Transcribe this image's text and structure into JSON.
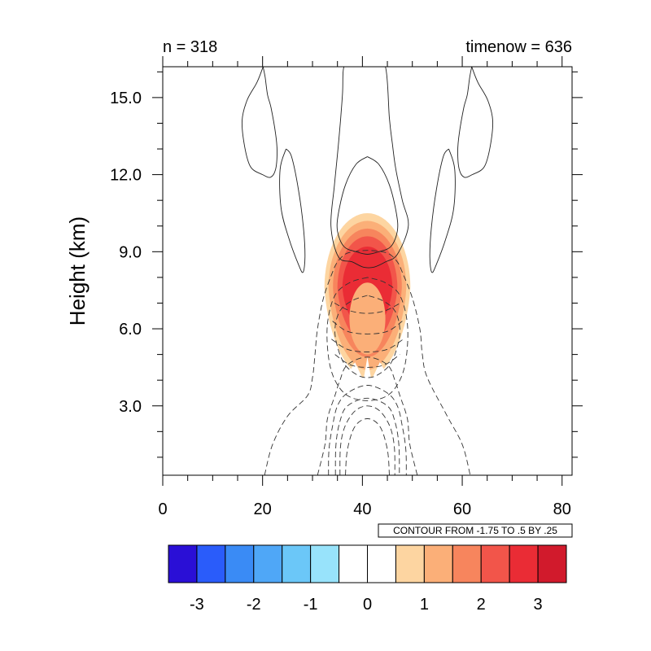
{
  "chart_data": {
    "type": "contour",
    "title_left": "n = 318",
    "title_right": "timenow = 636",
    "xlabel": "",
    "ylabel": "Height (km)",
    "xlim": [
      0,
      82
    ],
    "ylim": [
      0.3,
      16.2
    ],
    "x_ticks": [
      0,
      20,
      40,
      60,
      80
    ],
    "x_tick_labels": [
      "0",
      "20",
      "40",
      "60",
      "80"
    ],
    "y_ticks": [
      3,
      6,
      9,
      12,
      15
    ],
    "y_tick_labels": [
      "3.0",
      "6.0",
      "9.0",
      "12.0",
      "15.0"
    ],
    "contour_info": "CONTOUR FROM -1.75 TO .5 BY .25",
    "filled_field": {
      "center": [
        41,
        7.6
      ],
      "levels": [
        {
          "value": 0.5,
          "rx": 8.6,
          "ry_top": 2.9,
          "ry_bot": 3.5
        },
        {
          "value": 1.0,
          "rx": 7.8,
          "ry_top": 2.6,
          "ry_bot": 3.2
        },
        {
          "value": 1.5,
          "rx": 6.9,
          "ry_top": 2.3,
          "ry_bot": 2.7
        },
        {
          "value": 2.0,
          "rx": 6.0,
          "ry_top": 2.0,
          "ry_bot": 2.2
        },
        {
          "value": 2.5,
          "rx": 5.0,
          "ry_top": 1.6,
          "ry_bot": 1.7
        }
      ],
      "inner_pale": {
        "cx": 41,
        "cy": 6.4,
        "rx": 3.6,
        "ry": 1.4
      }
    },
    "contour_lines": {
      "positive": [
        {
          "x": [
            41,
            38.7,
            36.6,
            35.2,
            35.0,
            36.3,
            38.7,
            41,
            43.3,
            45.7,
            47.0,
            46.8,
            45.4,
            43.3,
            41
          ],
          "y": [
            12.7,
            12.4,
            11.6,
            10.5,
            9.8,
            9.2,
            9.0,
            8.9,
            9.0,
            9.2,
            9.8,
            10.5,
            11.6,
            12.4,
            12.7
          ]
        },
        {
          "x": [
            38.2,
            42.2,
            44.6,
            45.4,
            46.0,
            46.7,
            48.0,
            49.2,
            47.0,
            44.6,
            42.3,
            40.2,
            38.0,
            35.2,
            33.7,
            34.4,
            35.3,
            36.0,
            36.3,
            38.2
          ],
          "y": [
            16.2,
            16.2,
            16.2,
            14.2,
            13.2,
            12.2,
            11.0,
            10.0,
            8.9,
            8.6,
            8.4,
            8.4,
            8.6,
            8.8,
            10.0,
            11.6,
            13.4,
            15.1,
            16.2,
            16.2
          ]
        },
        {
          "x": [
            20.1,
            20.5,
            21.0,
            21.7,
            22.6,
            22.9,
            22.6,
            21.6,
            20.0,
            17.6,
            16.4,
            15.9,
            16.9,
            18.9,
            20.1
          ],
          "y": [
            16.2,
            15.8,
            15.1,
            14.6,
            13.6,
            12.9,
            12.2,
            11.9,
            12.0,
            12.3,
            13.1,
            14.1,
            14.9,
            15.6,
            16.2
          ]
        },
        {
          "x": [
            61.9,
            61.5,
            61.0,
            60.3,
            59.4,
            59.1,
            59.4,
            60.4,
            62.0,
            64.4,
            65.6,
            66.1,
            65.1,
            63.1,
            61.9
          ],
          "y": [
            16.2,
            15.8,
            15.1,
            14.6,
            13.6,
            12.9,
            12.2,
            11.9,
            12.0,
            12.3,
            13.1,
            14.1,
            14.9,
            15.6,
            16.2
          ]
        },
        {
          "x": [
            24.7,
            23.5,
            23.7,
            25.3,
            27.2,
            28.1,
            28.5,
            28.2,
            27.2,
            25.8,
            24.7
          ],
          "y": [
            13.0,
            12.2,
            10.7,
            9.5,
            8.5,
            8.2,
            8.8,
            9.9,
            11.4,
            12.7,
            13.0
          ]
        },
        {
          "x": [
            57.3,
            58.5,
            58.3,
            56.7,
            54.8,
            53.9,
            53.5,
            53.8,
            54.8,
            56.2,
            57.3
          ],
          "y": [
            13.0,
            12.2,
            10.7,
            9.5,
            8.5,
            8.2,
            8.8,
            9.9,
            11.4,
            12.7,
            13.0
          ]
        }
      ],
      "negative": [
        {
          "x": [
            41,
            38.0,
            35.5,
            34.5,
            35.0,
            36.5,
            39.0,
            41,
            43.0,
            45.5,
            47.0,
            47.5,
            46.5,
            44.0,
            41
          ],
          "y": [
            7.3,
            7.1,
            6.7,
            6.0,
            5.3,
            4.6,
            4.2,
            4.1,
            4.2,
            4.6,
            5.3,
            6.0,
            6.7,
            7.1,
            7.3
          ]
        },
        {
          "x": [
            41,
            37.5,
            34.5,
            33.0,
            33.2,
            34.5,
            37.0,
            41,
            45.0,
            47.5,
            48.8,
            49.0,
            47.5,
            44.5,
            41
          ],
          "y": [
            8.0,
            7.8,
            7.3,
            6.2,
            4.9,
            4.0,
            3.4,
            3.2,
            3.4,
            4.0,
            4.9,
            6.2,
            7.3,
            7.8,
            8.0
          ]
        },
        {
          "x": [
            20.4,
            22.0,
            25.0,
            29.0,
            30.0,
            30.5,
            31.0,
            32.2,
            34.0,
            35.0,
            36.5,
            38.2,
            41.0,
            43.8,
            45.5,
            47.0,
            48.0,
            50.0,
            51.5,
            52.0,
            53.0,
            57.0,
            60.0,
            61.6
          ],
          "y": [
            0.3,
            1.5,
            2.6,
            3.4,
            4.1,
            5.0,
            6.0,
            7.2,
            8.2,
            8.6,
            8.9,
            9.0,
            9.05,
            9.0,
            8.9,
            8.6,
            8.2,
            7.2,
            6.0,
            5.0,
            4.1,
            2.6,
            1.5,
            0.3
          ]
        },
        {
          "x": [
            31.0,
            32.5,
            33.0,
            34.5,
            35.5,
            37.0,
            41.0,
            45.0,
            46.5,
            47.5,
            49.0,
            49.5,
            51.0
          ],
          "y": [
            0.3,
            1.5,
            2.5,
            3.4,
            4.0,
            4.6,
            4.9,
            4.6,
            4.0,
            3.4,
            2.5,
            1.5,
            0.3
          ]
        },
        {
          "x": [
            33.2,
            33.3,
            34.0,
            35.0,
            37.0,
            41.0,
            45.0,
            47.0,
            48.0,
            48.7,
            48.8
          ],
          "y": [
            0.3,
            1.3,
            2.2,
            3.0,
            3.5,
            3.8,
            3.5,
            3.0,
            2.2,
            1.3,
            0.3
          ]
        },
        {
          "x": [
            34.6,
            34.7,
            35.5,
            37.0,
            41.0,
            45.0,
            46.5,
            47.3,
            47.4
          ],
          "y": [
            0.3,
            1.5,
            2.4,
            3.0,
            3.3,
            3.0,
            2.4,
            1.5,
            0.3
          ]
        },
        {
          "x": [
            35.5,
            35.6,
            36.5,
            38.5,
            41.0,
            43.5,
            45.5,
            46.4,
            46.5
          ],
          "y": [
            0.3,
            1.4,
            2.2,
            2.8,
            3.0,
            2.8,
            2.2,
            1.4,
            0.3
          ]
        },
        {
          "x": [
            36.6,
            37.0,
            38.5,
            41.0,
            43.5,
            45.0,
            45.4
          ],
          "y": [
            0.3,
            1.3,
            2.2,
            2.5,
            2.2,
            1.3,
            0.3
          ]
        },
        {
          "x": [
            34.5,
            37.5,
            41.0,
            44.5,
            47.5
          ],
          "y": [
            5.0,
            4.6,
            4.5,
            4.6,
            5.0
          ]
        },
        {
          "x": [
            33.8,
            37.0,
            41.0,
            45.0,
            48.2
          ],
          "y": [
            5.6,
            5.2,
            5.1,
            5.2,
            5.6
          ]
        },
        {
          "x": [
            34.0,
            37.0,
            41.0,
            45.0,
            48.0
          ],
          "y": [
            6.3,
            5.9,
            5.8,
            5.9,
            6.3
          ]
        },
        {
          "x": [
            34.4,
            37.5,
            41.0,
            44.5,
            47.6
          ],
          "y": [
            7.0,
            6.7,
            6.6,
            6.7,
            7.0
          ]
        }
      ]
    },
    "colorbar": {
      "colors": [
        "#2a0fd6",
        "#2a5cfa",
        "#3a8bf5",
        "#4fa7f7",
        "#6bc7f8",
        "#98e3fb",
        "#ffffff",
        "#ffffff",
        "#fdd5a1",
        "#fbaf78",
        "#f7855d",
        "#f2554a",
        "#ea2c35",
        "#d11a2c"
      ],
      "tick_values": [
        -3,
        -2,
        -1,
        0,
        1,
        2,
        3
      ],
      "tick_labels": [
        "-3",
        "-2",
        "-1",
        "0",
        "1",
        "2",
        "3"
      ],
      "range": [
        -3.5,
        3.5
      ]
    }
  }
}
